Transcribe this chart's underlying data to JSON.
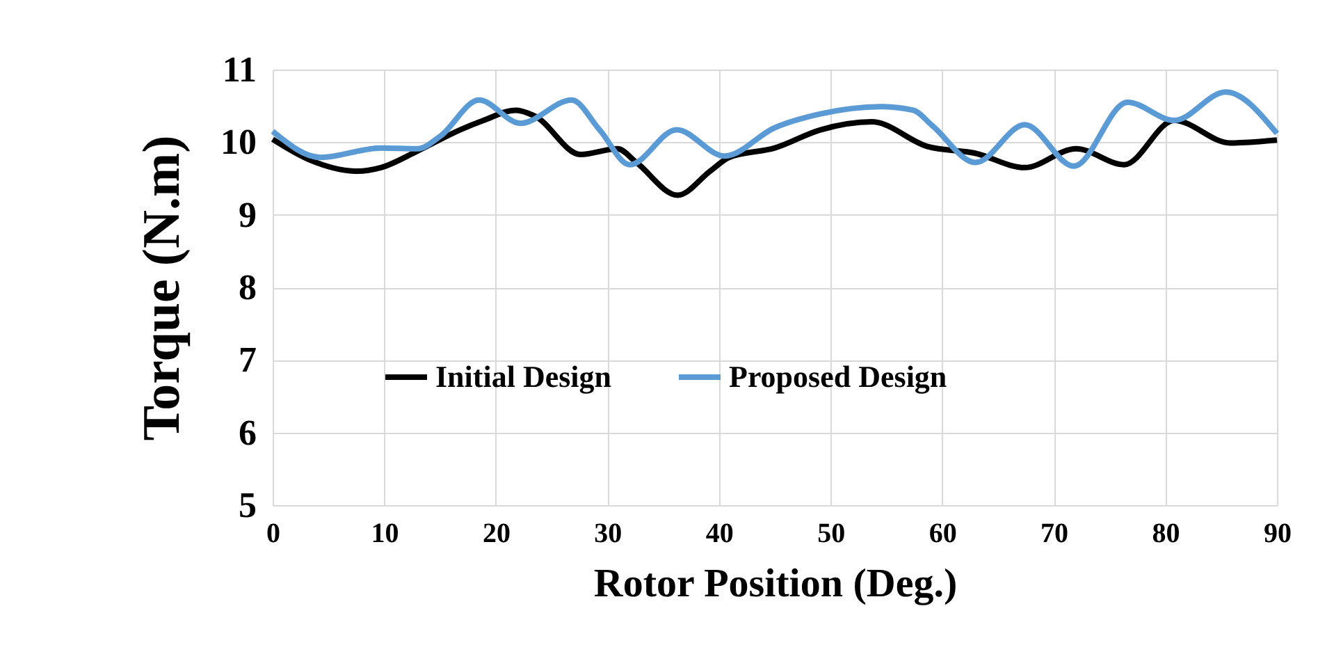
{
  "chart_data": {
    "type": "line",
    "xlabel": "Rotor Position (Deg.)",
    "ylabel": "Torque (N.m)",
    "xlim": [
      0,
      90
    ],
    "xticks": [
      0,
      10,
      20,
      30,
      40,
      50,
      60,
      70,
      80,
      90
    ],
    "ylim": [
      5,
      11
    ],
    "yticks": [
      5,
      6,
      7,
      8,
      9,
      10,
      11
    ],
    "grid": true,
    "legend": "center",
    "series": [
      {
        "name": "Initial Design",
        "color": "#000000",
        "x": [
          0,
          3.4,
          7.6,
          9.7,
          13,
          16.8,
          18.9,
          21.8,
          23.5,
          27.6,
          30.9,
          32.6,
          36.3,
          39.2,
          40.9,
          45,
          49.1,
          53.7,
          58.7,
          62.9,
          67.4,
          72,
          76.3,
          80.8,
          85.8,
          90
        ],
        "values": [
          10.04,
          9.75,
          9.6,
          9.65,
          9.88,
          10.17,
          10.3,
          10.44,
          10.36,
          9.83,
          9.91,
          9.72,
          9.27,
          9.6,
          9.79,
          9.92,
          10.17,
          10.28,
          9.94,
          9.85,
          9.65,
          9.91,
          9.69,
          10.3,
          9.99,
          10.03
        ]
      },
      {
        "name": "Proposed Design",
        "color": "#5b9bd5",
        "x": [
          0,
          4.3,
          9.7,
          13,
          15,
          18.5,
          22.2,
          26.8,
          29.3,
          32,
          36.2,
          40.5,
          45,
          49.1,
          54.5,
          57.4,
          59.1,
          63,
          67.4,
          71.8,
          76.6,
          80.8,
          85.4,
          90
        ],
        "values": [
          10.15,
          9.79,
          9.92,
          9.91,
          10.08,
          10.58,
          10.26,
          10.58,
          10.17,
          9.69,
          10.17,
          9.81,
          10.2,
          10.39,
          10.49,
          10.44,
          10.23,
          9.72,
          10.24,
          9.67,
          10.55,
          10.3,
          10.69,
          10.12
        ]
      }
    ]
  }
}
